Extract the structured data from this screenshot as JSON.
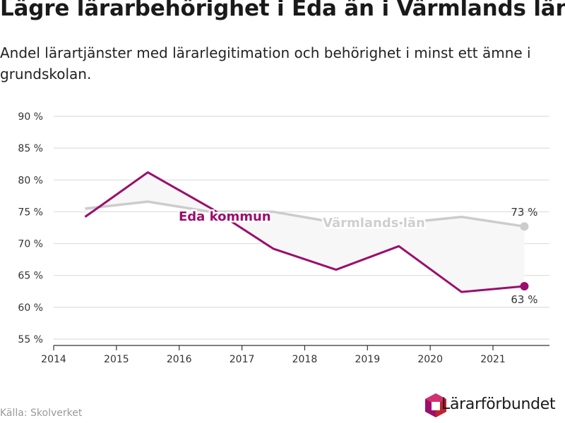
{
  "title": "Lägre lärarbehörighet i Eda än i Värmlands län",
  "subtitle": "Andel lärartjänster med lärarlegitimation och behörighet i minst ett ämne i grundskolan.",
  "source": "Källa: Skolverket",
  "brand": "Lärarförbundet",
  "colors": {
    "eda": "#9b0e6d",
    "varmland": "#cccccc",
    "band": "#f7f7f7",
    "grid": "#dddddd",
    "axis": "#333333"
  },
  "chart_data": {
    "type": "line",
    "x": [
      2014.5,
      2015.5,
      2016.5,
      2017.5,
      2018.5,
      2019.5,
      2020.5,
      2021.5
    ],
    "xticks": [
      2014,
      2015,
      2016,
      2017,
      2018,
      2019,
      2020,
      2021
    ],
    "xlim": [
      2014,
      2021.9
    ],
    "ylim": [
      54,
      91
    ],
    "yticks": [
      55,
      60,
      65,
      70,
      75,
      80,
      85,
      90
    ],
    "ytick_labels": [
      "55 %",
      "60 %",
      "65 %",
      "70 %",
      "75 %",
      "80 %",
      "85 %",
      "90 %"
    ],
    "grid": true,
    "series": [
      {
        "name": "Värmlands län",
        "color": "#cccccc",
        "values": [
          75.5,
          76.6,
          75.0,
          75.0,
          73.3,
          73.2,
          74.2,
          72.7
        ],
        "end_label": "73 %"
      },
      {
        "name": "Eda kommun",
        "color": "#9b0e6d",
        "values": [
          74.2,
          81.2,
          75.6,
          69.2,
          65.9,
          69.6,
          62.4,
          63.3
        ],
        "end_label": "63 %"
      }
    ]
  }
}
